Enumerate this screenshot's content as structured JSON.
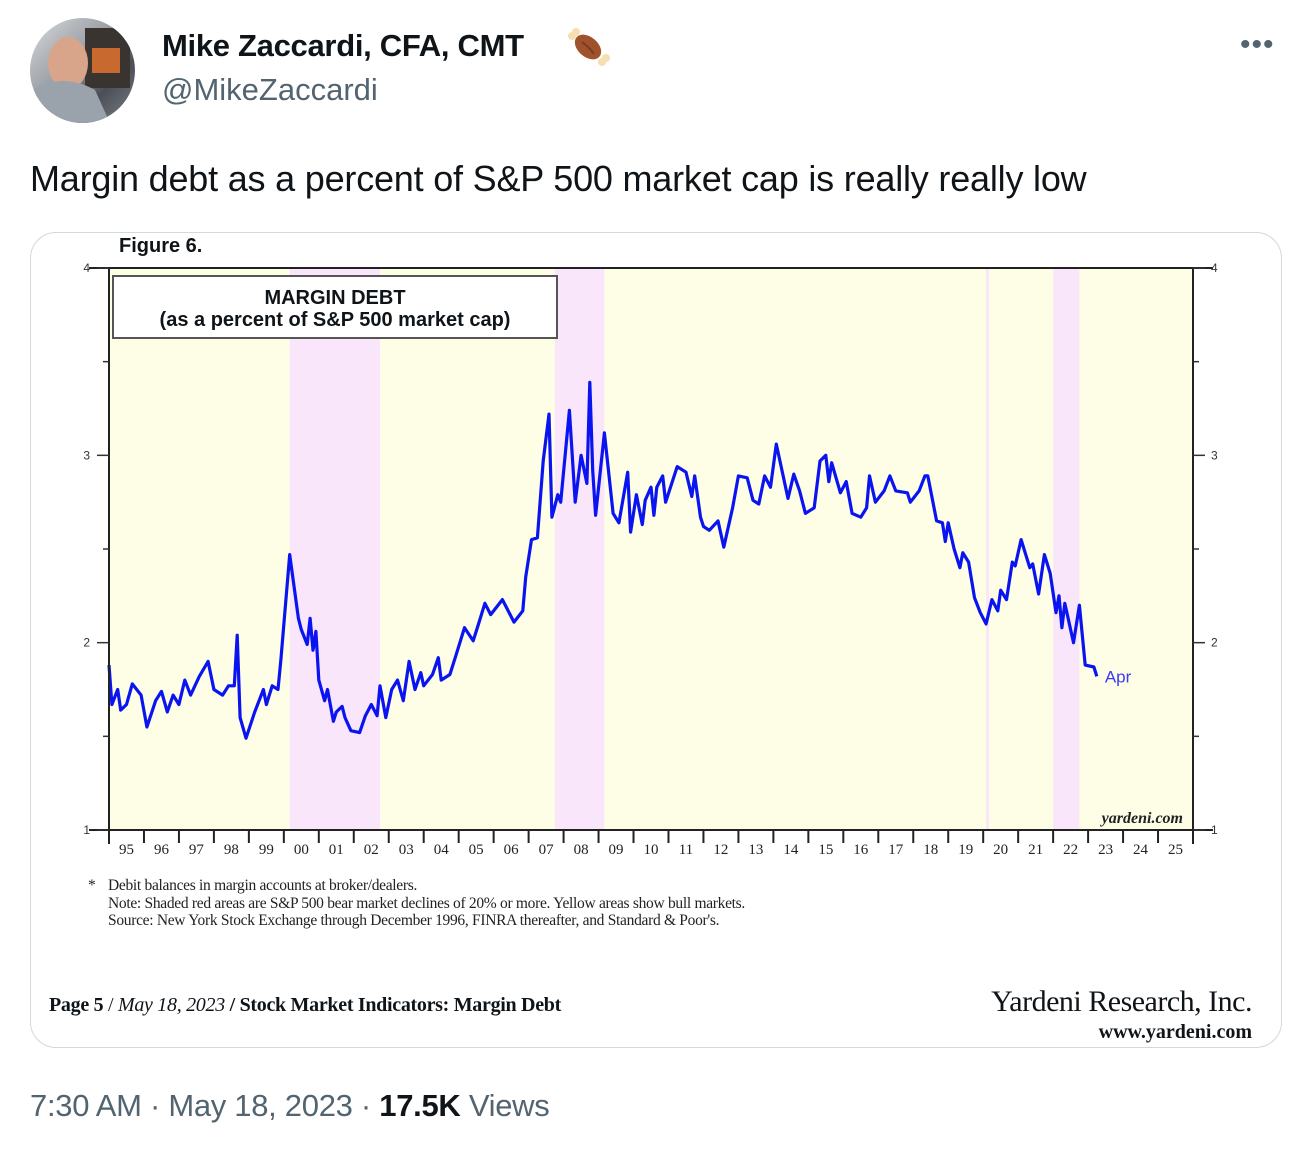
{
  "tweet": {
    "author_name": "Mike Zaccardi, CFA, CMT",
    "author_emoji_icon": "meat-on-bone-icon",
    "handle": "@MikeZaccardi",
    "more_icon": "ellipsis-icon",
    "text": "Margin debt as a percent of S&P 500 market cap is really really low",
    "time": "7:30 AM",
    "separator": "·",
    "date": "May 18, 2023",
    "views_count": "17.5K",
    "views_label": "Views"
  },
  "figure": {
    "label": "Figure 6.",
    "watermark": "yardeni.com",
    "notes": {
      "bullet": "*",
      "lines": [
        "Debit balances in margin accounts at broker/dealers.",
        "Note: Shaded red areas are S&P 500 bear market declines of 20% or more. Yellow areas show bull markets.",
        "Source: New York Stock Exchange through December 1996, FINRA thereafter, and Standard & Poor's."
      ]
    },
    "footer": {
      "page": "Page 5",
      "sep": "/",
      "date": "May 18, 2023",
      "title": "Stock Market Indicators: Margin Debt",
      "company": "Yardeni Research, Inc.",
      "url": "www.yardeni.com"
    }
  },
  "chart_data": {
    "type": "line",
    "title": "MARGIN DEBT",
    "subtitle": "(as a percent of S&P 500 market cap)",
    "ylim": [
      1,
      4
    ],
    "y_ticks": [
      "1",
      "2",
      "3",
      "4"
    ],
    "x_range": [
      "1995-01",
      "2025-12"
    ],
    "x_tick_labels": [
      "95",
      "96",
      "97",
      "98",
      "99",
      "00",
      "01",
      "02",
      "03",
      "04",
      "05",
      "06",
      "07",
      "08",
      "09",
      "10",
      "11",
      "12",
      "13",
      "14",
      "15",
      "16",
      "17",
      "18",
      "19",
      "20",
      "21",
      "22",
      "23",
      "24",
      "25"
    ],
    "end_label": "Apr",
    "grid": false,
    "colors": {
      "line": "#0a14f0",
      "bull": "#fefde6",
      "bear": "#f9e6fa",
      "end_label": "#3a3cf0"
    },
    "bear_markets": [
      [
        "2000-03",
        "2002-10"
      ],
      [
        "2007-10",
        "2009-03"
      ],
      [
        "2020-02",
        "2020-03"
      ],
      [
        "2022-01",
        "2022-10"
      ]
    ],
    "series": [
      {
        "points": [
          [
            "1995-01",
            1.88
          ],
          [
            "1995-02",
            1.67
          ],
          [
            "1995-04",
            1.75
          ],
          [
            "1995-05",
            1.64
          ],
          [
            "1995-07",
            1.67
          ],
          [
            "1995-09",
            1.78
          ],
          [
            "1995-12",
            1.72
          ],
          [
            "1996-02",
            1.55
          ],
          [
            "1996-05",
            1.69
          ],
          [
            "1996-07",
            1.74
          ],
          [
            "1996-09",
            1.63
          ],
          [
            "1996-11",
            1.72
          ],
          [
            "1997-01",
            1.67
          ],
          [
            "1997-03",
            1.8
          ],
          [
            "1997-05",
            1.72
          ],
          [
            "1997-08",
            1.82
          ],
          [
            "1997-11",
            1.9
          ],
          [
            "1998-01",
            1.75
          ],
          [
            "1998-04",
            1.72
          ],
          [
            "1998-06",
            1.77
          ],
          [
            "1998-08",
            1.77
          ],
          [
            "1998-09",
            2.04
          ],
          [
            "1998-10",
            1.6
          ],
          [
            "1998-12",
            1.49
          ],
          [
            "1999-03",
            1.63
          ],
          [
            "1999-06",
            1.75
          ],
          [
            "1999-07",
            1.67
          ],
          [
            "1999-09",
            1.77
          ],
          [
            "1999-11",
            1.75
          ],
          [
            "1999-12",
            1.91
          ],
          [
            "2000-03",
            2.47
          ],
          [
            "2000-06",
            2.13
          ],
          [
            "2000-07",
            2.07
          ],
          [
            "2000-09",
            1.99
          ],
          [
            "2000-10",
            2.13
          ],
          [
            "2000-11",
            1.96
          ],
          [
            "2000-12",
            2.06
          ],
          [
            "2001-01",
            1.8
          ],
          [
            "2001-03",
            1.69
          ],
          [
            "2001-04",
            1.75
          ],
          [
            "2001-06",
            1.58
          ],
          [
            "2001-07",
            1.63
          ],
          [
            "2001-09",
            1.66
          ],
          [
            "2001-10",
            1.6
          ],
          [
            "2001-12",
            1.53
          ],
          [
            "2002-03",
            1.52
          ],
          [
            "2002-05",
            1.61
          ],
          [
            "2002-07",
            1.67
          ],
          [
            "2002-09",
            1.61
          ],
          [
            "2002-10",
            1.77
          ],
          [
            "2002-12",
            1.6
          ],
          [
            "2003-02",
            1.75
          ],
          [
            "2003-04",
            1.8
          ],
          [
            "2003-06",
            1.69
          ],
          [
            "2003-08",
            1.9
          ],
          [
            "2003-10",
            1.75
          ],
          [
            "2003-12",
            1.84
          ],
          [
            "2004-01",
            1.77
          ],
          [
            "2004-04",
            1.83
          ],
          [
            "2004-06",
            1.92
          ],
          [
            "2004-07",
            1.8
          ],
          [
            "2004-10",
            1.83
          ],
          [
            "2004-12",
            1.93
          ],
          [
            "2005-03",
            2.08
          ],
          [
            "2005-06",
            2.01
          ],
          [
            "2005-08",
            2.11
          ],
          [
            "2005-10",
            2.21
          ],
          [
            "2005-12",
            2.15
          ],
          [
            "2006-04",
            2.23
          ],
          [
            "2006-08",
            2.11
          ],
          [
            "2006-11",
            2.17
          ],
          [
            "2006-12",
            2.35
          ],
          [
            "2007-02",
            2.55
          ],
          [
            "2007-04",
            2.56
          ],
          [
            "2007-06",
            2.97
          ],
          [
            "2007-08",
            3.22
          ],
          [
            "2007-09",
            2.67
          ],
          [
            "2007-11",
            2.79
          ],
          [
            "2007-12",
            2.75
          ],
          [
            "2008-03",
            3.24
          ],
          [
            "2008-05",
            2.75
          ],
          [
            "2008-07",
            3.0
          ],
          [
            "2008-09",
            2.85
          ],
          [
            "2008-10",
            3.39
          ],
          [
            "2008-11",
            2.92
          ],
          [
            "2008-12",
            2.68
          ],
          [
            "2009-03",
            3.12
          ],
          [
            "2009-06",
            2.69
          ],
          [
            "2009-08",
            2.64
          ],
          [
            "2009-11",
            2.91
          ],
          [
            "2009-12",
            2.59
          ],
          [
            "2010-02",
            2.79
          ],
          [
            "2010-04",
            2.63
          ],
          [
            "2010-05",
            2.76
          ],
          [
            "2010-07",
            2.83
          ],
          [
            "2010-08",
            2.68
          ],
          [
            "2010-09",
            2.83
          ],
          [
            "2010-11",
            2.89
          ],
          [
            "2010-12",
            2.75
          ],
          [
            "2011-04",
            2.94
          ],
          [
            "2011-07",
            2.91
          ],
          [
            "2011-09",
            2.78
          ],
          [
            "2011-10",
            2.89
          ],
          [
            "2011-12",
            2.67
          ],
          [
            "2012-01",
            2.62
          ],
          [
            "2012-03",
            2.6
          ],
          [
            "2012-06",
            2.65
          ],
          [
            "2012-08",
            2.51
          ],
          [
            "2012-11",
            2.72
          ],
          [
            "2013-01",
            2.89
          ],
          [
            "2013-04",
            2.88
          ],
          [
            "2013-06",
            2.76
          ],
          [
            "2013-08",
            2.74
          ],
          [
            "2013-10",
            2.89
          ],
          [
            "2013-12",
            2.83
          ],
          [
            "2014-02",
            3.06
          ],
          [
            "2014-06",
            2.77
          ],
          [
            "2014-08",
            2.9
          ],
          [
            "2014-10",
            2.81
          ],
          [
            "2014-12",
            2.69
          ],
          [
            "2015-03",
            2.72
          ],
          [
            "2015-05",
            2.97
          ],
          [
            "2015-07",
            3.0
          ],
          [
            "2015-08",
            2.86
          ],
          [
            "2015-09",
            2.96
          ],
          [
            "2015-12",
            2.8
          ],
          [
            "2016-02",
            2.86
          ],
          [
            "2016-04",
            2.69
          ],
          [
            "2016-07",
            2.67
          ],
          [
            "2016-09",
            2.72
          ],
          [
            "2016-10",
            2.89
          ],
          [
            "2016-12",
            2.75
          ],
          [
            "2017-03",
            2.81
          ],
          [
            "2017-05",
            2.89
          ],
          [
            "2017-07",
            2.81
          ],
          [
            "2017-11",
            2.8
          ],
          [
            "2017-12",
            2.75
          ],
          [
            "2018-03",
            2.81
          ],
          [
            "2018-05",
            2.89
          ],
          [
            "2018-06",
            2.89
          ],
          [
            "2018-09",
            2.65
          ],
          [
            "2018-11",
            2.64
          ],
          [
            "2018-12",
            2.54
          ],
          [
            "2019-01",
            2.64
          ],
          [
            "2019-03",
            2.5
          ],
          [
            "2019-05",
            2.4
          ],
          [
            "2019-06",
            2.48
          ],
          [
            "2019-08",
            2.43
          ],
          [
            "2019-10",
            2.24
          ],
          [
            "2019-12",
            2.16
          ],
          [
            "2020-02",
            2.1
          ],
          [
            "2020-04",
            2.23
          ],
          [
            "2020-06",
            2.17
          ],
          [
            "2020-07",
            2.28
          ],
          [
            "2020-09",
            2.23
          ],
          [
            "2020-11",
            2.43
          ],
          [
            "2020-12",
            2.41
          ],
          [
            "2021-02",
            2.55
          ],
          [
            "2021-05",
            2.4
          ],
          [
            "2021-06",
            2.42
          ],
          [
            "2021-08",
            2.26
          ],
          [
            "2021-10",
            2.47
          ],
          [
            "2021-12",
            2.37
          ],
          [
            "2022-02",
            2.16
          ],
          [
            "2022-03",
            2.25
          ],
          [
            "2022-04",
            2.08
          ],
          [
            "2022-05",
            2.21
          ],
          [
            "2022-06",
            2.14
          ],
          [
            "2022-08",
            2.0
          ],
          [
            "2022-10",
            2.2
          ],
          [
            "2022-12",
            1.88
          ],
          [
            "2023-03",
            1.87
          ],
          [
            "2023-04",
            1.82
          ]
        ]
      }
    ]
  }
}
